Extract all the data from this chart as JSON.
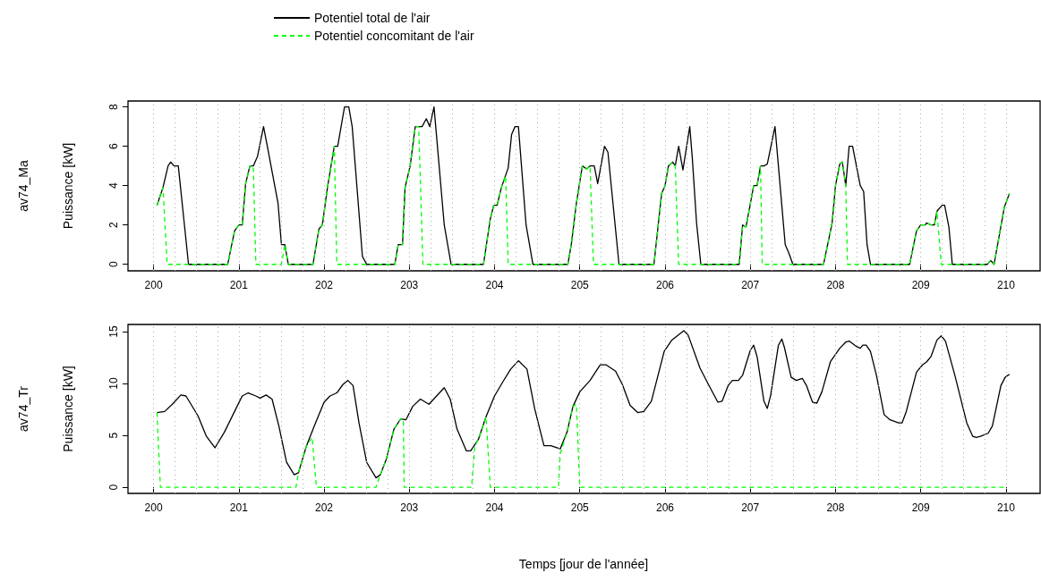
{
  "chart_data": [
    {
      "type": "line",
      "annotations": [
        "av74_Ma"
      ],
      "ylabel": "Puissance [kW]",
      "legend": "top",
      "grid": "x",
      "xlim": [
        199.7,
        210.4
      ],
      "xticks": [
        200,
        201,
        202,
        203,
        204,
        205,
        206,
        207,
        208,
        209,
        210
      ],
      "ylim": [
        -0.33,
        8.3
      ],
      "yticks": [
        0,
        2,
        4,
        6,
        8
      ],
      "series": [
        {
          "name": "Potentiel total de l'air",
          "color": "#000000",
          "line_style": "solid",
          "x": [
            200.04,
            200.11,
            200.17,
            200.2,
            200.24,
            200.29,
            200.41,
            200.87,
            200.95,
            201.0,
            201.04,
            201.08,
            201.13,
            201.17,
            201.22,
            201.29,
            201.33,
            201.46,
            201.5,
            201.54,
            201.58,
            201.87,
            201.94,
            201.98,
            202.04,
            202.12,
            202.16,
            202.24,
            202.29,
            202.33,
            202.45,
            202.5,
            202.83,
            202.87,
            202.92,
            202.95,
            203.01,
            203.07,
            203.15,
            203.2,
            203.24,
            203.29,
            203.41,
            203.49,
            203.87,
            203.95,
            203.99,
            204.03,
            204.08,
            204.16,
            204.2,
            204.24,
            204.28,
            204.37,
            204.45,
            204.86,
            204.9,
            204.96,
            205.03,
            205.08,
            205.12,
            205.17,
            205.21,
            205.29,
            205.33,
            205.46,
            205.87,
            205.96,
            206.0,
            206.04,
            206.09,
            206.12,
            206.16,
            206.21,
            206.29,
            206.32,
            206.37,
            206.42,
            206.87,
            206.91,
            206.95,
            207.04,
            207.08,
            207.12,
            207.16,
            207.2,
            207.29,
            207.41,
            207.45,
            207.5,
            207.86,
            207.96,
            208.0,
            208.05,
            208.08,
            208.12,
            208.16,
            208.2,
            208.29,
            208.33,
            208.37,
            208.41,
            208.87,
            208.95,
            209.0,
            209.05,
            209.07,
            209.12,
            209.16,
            209.19,
            209.25,
            209.28,
            209.33,
            209.37,
            209.78,
            209.82,
            209.86,
            209.98,
            210.04
          ],
          "values": [
            3.0,
            3.9,
            5.0,
            5.2,
            5.0,
            5.0,
            0,
            0,
            1.7,
            2.0,
            2.0,
            4.1,
            5.0,
            5.0,
            5.5,
            7.0,
            6.1,
            3.1,
            1.0,
            1.0,
            0,
            0,
            1.8,
            2.0,
            3.9,
            6.0,
            6.0,
            8.0,
            8.0,
            7.0,
            0.4,
            0,
            0,
            1.0,
            1.0,
            3.9,
            5.0,
            7.0,
            7.0,
            7.4,
            7.0,
            8.0,
            2.0,
            0,
            0,
            2.3,
            3.0,
            3.0,
            3.9,
            4.9,
            6.6,
            7.0,
            7.0,
            2.0,
            0,
            0,
            1.0,
            3.1,
            5.0,
            4.85,
            5.0,
            5.0,
            4.1,
            6.0,
            5.7,
            0,
            0,
            3.6,
            4.0,
            5.0,
            5.2,
            5.0,
            6.0,
            4.8,
            7.0,
            5.4,
            2.1,
            0,
            0,
            2.0,
            1.9,
            4.0,
            4.0,
            5.0,
            5.0,
            5.1,
            7.0,
            1.0,
            0.6,
            0,
            0,
            2.1,
            4.0,
            5.1,
            5.2,
            4.0,
            6.0,
            6.0,
            4.0,
            3.7,
            1.0,
            0,
            0,
            1.7,
            2.0,
            2.0,
            2.1,
            2.0,
            2.0,
            2.7,
            3.0,
            3.0,
            1.9,
            0,
            0,
            0.2,
            0,
            2.9,
            3.6
          ]
        },
        {
          "name": "Potentiel concomitant de l'air",
          "color": "#00ff00",
          "line_style": "dashed",
          "x": [
            200.04,
            200.11,
            200.16,
            200.87,
            200.95,
            201.0,
            201.04,
            201.08,
            201.13,
            201.17,
            201.2,
            201.5,
            201.54,
            201.58,
            201.87,
            201.94,
            201.98,
            202.04,
            202.12,
            202.15,
            202.83,
            202.87,
            202.92,
            202.95,
            203.01,
            203.07,
            203.11,
            203.16,
            203.87,
            203.95,
            203.99,
            204.03,
            204.08,
            204.13,
            204.16,
            204.86,
            204.9,
            204.96,
            205.03,
            205.08,
            205.12,
            205.16,
            205.87,
            205.96,
            206.0,
            206.04,
            206.09,
            206.12,
            206.16,
            206.87,
            206.91,
            206.95,
            207.04,
            207.08,
            207.12,
            207.14,
            207.86,
            207.96,
            208.0,
            208.05,
            208.08,
            208.12,
            208.14,
            208.87,
            208.95,
            209.0,
            209.05,
            209.07,
            209.12,
            209.16,
            209.19,
            209.24,
            209.78,
            209.82,
            209.86,
            209.98,
            210.04
          ],
          "values": [
            3.0,
            3.9,
            0,
            0,
            1.7,
            2.0,
            2.0,
            4.1,
            5.0,
            5.0,
            0,
            0,
            1.0,
            0,
            0,
            1.8,
            2.0,
            3.9,
            6.0,
            0,
            0,
            1.0,
            1.0,
            3.9,
            5.0,
            7.0,
            7.0,
            0,
            0,
            2.3,
            3.0,
            3.0,
            3.9,
            4.5,
            0,
            0,
            1.0,
            3.1,
            5.0,
            4.85,
            5.0,
            0,
            0,
            3.6,
            4.0,
            5.0,
            5.2,
            5.0,
            0,
            0,
            2.0,
            1.9,
            4.0,
            4.0,
            5.0,
            0,
            0,
            2.1,
            4.0,
            5.1,
            5.2,
            4.0,
            0,
            0,
            1.7,
            2.0,
            2.0,
            2.1,
            2.0,
            2.0,
            2.7,
            0,
            0,
            0.2,
            0,
            2.9,
            3.6
          ]
        }
      ]
    },
    {
      "type": "line",
      "annotations": [
        "av74_Tr"
      ],
      "ylabel": "Puissance [kW]",
      "xlabel": "Temps [jour de l'année]",
      "grid": "x",
      "xlim": [
        199.7,
        210.4
      ],
      "xticks": [
        200,
        201,
        202,
        203,
        204,
        205,
        206,
        207,
        208,
        209,
        210
      ],
      "ylim": [
        -0.6,
        15.7
      ],
      "yticks": [
        0,
        5,
        10,
        15
      ],
      "series": [
        {
          "color": "#000000",
          "line_style": "solid",
          "x": [
            200.04,
            200.13,
            200.22,
            200.32,
            200.38,
            200.52,
            200.62,
            200.72,
            200.83,
            200.95,
            201.04,
            201.11,
            201.2,
            201.25,
            201.32,
            201.39,
            201.47,
            201.56,
            201.65,
            201.7,
            201.79,
            201.89,
            202.0,
            202.07,
            202.15,
            202.22,
            202.28,
            202.34,
            202.41,
            202.5,
            202.61,
            202.66,
            202.73,
            202.82,
            202.9,
            202.96,
            203.04,
            203.13,
            203.23,
            203.32,
            203.41,
            203.48,
            203.56,
            203.67,
            203.72,
            203.81,
            203.9,
            204.0,
            204.1,
            204.19,
            204.28,
            204.38,
            204.47,
            204.58,
            204.66,
            204.77,
            204.85,
            204.92,
            205.0,
            205.12,
            205.24,
            205.31,
            205.42,
            205.5,
            205.59,
            205.68,
            205.75,
            205.84,
            205.99,
            206.08,
            206.22,
            206.27,
            206.41,
            206.51,
            206.62,
            206.67,
            206.74,
            206.79,
            206.86,
            206.91,
            207.0,
            207.04,
            207.08,
            207.16,
            207.2,
            207.24,
            207.33,
            207.37,
            207.4,
            207.48,
            207.54,
            207.61,
            207.66,
            207.73,
            207.78,
            207.84,
            207.94,
            208.05,
            208.12,
            208.16,
            208.24,
            208.29,
            208.32,
            208.36,
            208.41,
            208.48,
            208.57,
            208.64,
            208.74,
            208.78,
            208.83,
            208.95,
            209.02,
            209.07,
            209.12,
            209.19,
            209.24,
            209.29,
            209.4,
            209.54,
            209.61,
            209.65,
            209.7,
            209.79,
            209.84,
            209.94,
            209.99,
            210.04
          ],
          "values": [
            7.2,
            7.3,
            8.0,
            8.9,
            8.8,
            6.9,
            4.9,
            3.8,
            5.3,
            7.3,
            8.8,
            9.1,
            8.8,
            8.6,
            8.9,
            8.5,
            5.9,
            2.4,
            1.2,
            1.4,
            3.9,
            6.0,
            8.2,
            8.8,
            9.1,
            9.9,
            10.3,
            9.8,
            6.2,
            2.4,
            0.9,
            1.2,
            2.7,
            5.6,
            6.6,
            6.5,
            7.8,
            8.5,
            8.0,
            8.8,
            9.6,
            8.5,
            5.6,
            3.5,
            3.5,
            4.6,
            6.8,
            8.8,
            10.2,
            11.4,
            12.2,
            11.4,
            7.6,
            4.0,
            4.0,
            3.7,
            5.3,
            7.8,
            9.2,
            10.3,
            11.8,
            11.8,
            11.2,
            9.9,
            7.9,
            7.2,
            7.3,
            8.3,
            13.1,
            14.2,
            15.1,
            14.7,
            11.5,
            9.9,
            8.2,
            8.3,
            9.8,
            10.3,
            10.3,
            10.8,
            13.2,
            13.7,
            12.6,
            8.3,
            7.6,
            8.9,
            13.7,
            14.3,
            13.5,
            10.6,
            10.3,
            10.5,
            9.8,
            8.2,
            8.1,
            9.2,
            12.1,
            13.4,
            14.0,
            14.1,
            13.6,
            13.4,
            13.7,
            13.7,
            13.1,
            10.8,
            7.0,
            6.5,
            6.2,
            6.2,
            7.3,
            11.1,
            11.8,
            12.1,
            12.6,
            14.2,
            14.6,
            14.1,
            10.8,
            6.2,
            4.9,
            4.8,
            4.9,
            5.2,
            5.9,
            9.8,
            10.6,
            10.9
          ]
        },
        {
          "color": "#00ff00",
          "line_style": "dashed",
          "x": [
            200.04,
            200.08,
            201.67,
            201.7,
            201.79,
            201.86,
            201.91,
            202.61,
            202.66,
            202.73,
            202.82,
            202.9,
            202.93,
            202.94,
            203.73,
            203.77,
            203.81,
            203.9,
            203.95,
            204.75,
            204.77,
            204.85,
            204.92,
            204.96,
            205.0,
            209.98
          ],
          "values": [
            7.2,
            0,
            0,
            1.4,
            3.9,
            4.8,
            0,
            0,
            1.2,
            2.7,
            5.6,
            6.6,
            6.6,
            0,
            0,
            4.0,
            4.6,
            6.8,
            0,
            0,
            3.2,
            5.3,
            7.8,
            8.0,
            0,
            0
          ]
        }
      ]
    }
  ]
}
